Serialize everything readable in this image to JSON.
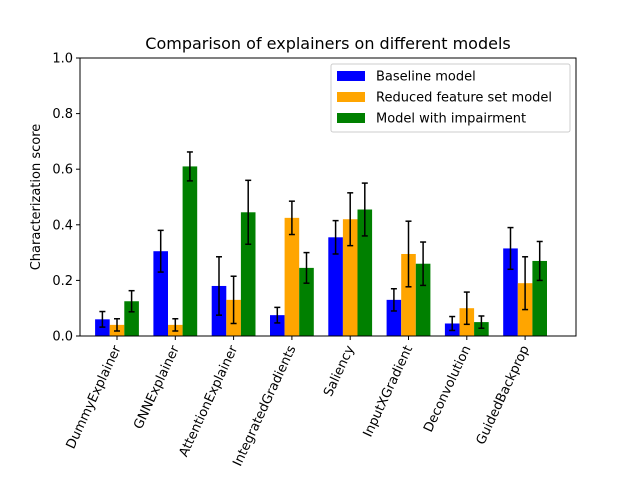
{
  "chart_data": {
    "type": "bar",
    "title": "Comparison of explainers on different models",
    "xlabel": "",
    "ylabel": "Characterization score",
    "ylim": [
      0,
      1.0
    ],
    "yticks": [
      "0.0",
      "0.2",
      "0.4",
      "0.6",
      "0.8",
      "1.0"
    ],
    "ytick_values": [
      0,
      0.2,
      0.4,
      0.6,
      0.8,
      1.0
    ],
    "categories": [
      "DummyExplainer",
      "GNNExplainer",
      "AttentionExplainer",
      "IntegratedGradients",
      "Saliency",
      "InputXGradient",
      "Deconvolution",
      "GuidedBackprop"
    ],
    "series": [
      {
        "name": "Baseline model",
        "color": "#0000ff",
        "values": [
          0.06,
          0.305,
          0.18,
          0.075,
          0.355,
          0.13,
          0.045,
          0.315
        ],
        "errors": [
          0.028,
          0.075,
          0.105,
          0.028,
          0.06,
          0.04,
          0.025,
          0.075
        ]
      },
      {
        "name": "Reduced feature set model",
        "color": "#ffa500",
        "values": [
          0.04,
          0.04,
          0.13,
          0.425,
          0.42,
          0.295,
          0.1,
          0.19
        ],
        "errors": [
          0.022,
          0.022,
          0.085,
          0.06,
          0.095,
          0.118,
          0.058,
          0.095
        ]
      },
      {
        "name": "Model with impairment",
        "color": "#008000",
        "values": [
          0.125,
          0.61,
          0.445,
          0.245,
          0.455,
          0.26,
          0.05,
          0.27
        ],
        "errors": [
          0.038,
          0.052,
          0.115,
          0.055,
          0.095,
          0.078,
          0.022,
          0.07
        ]
      }
    ],
    "legend_position": "top-right",
    "grid": false
  }
}
